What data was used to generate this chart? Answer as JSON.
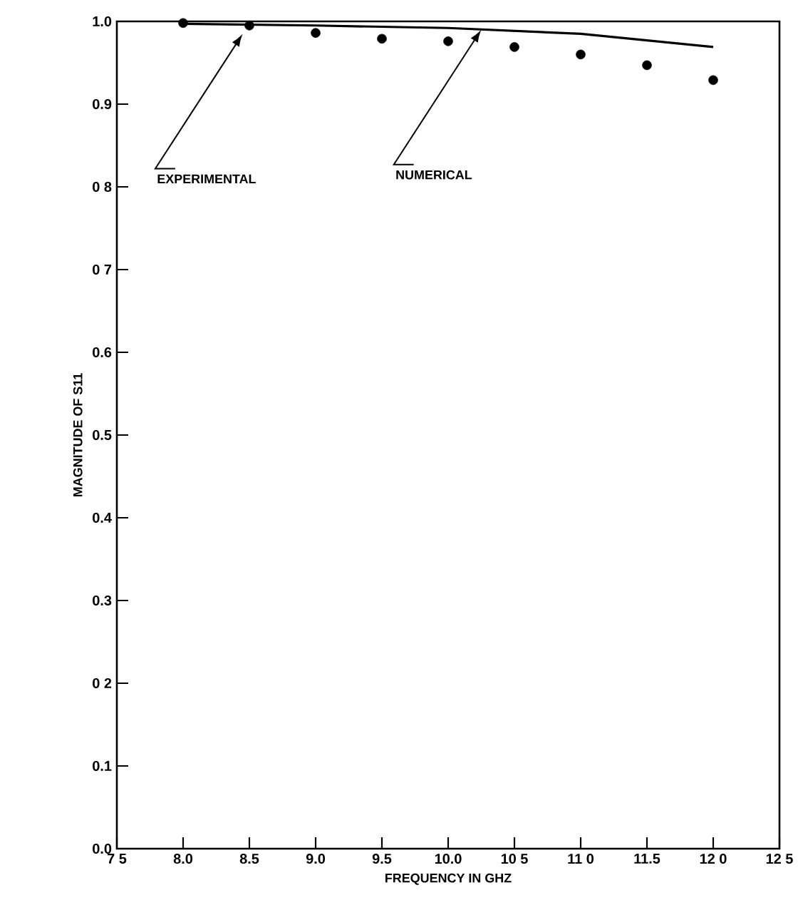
{
  "chart_data": {
    "type": "scatter",
    "xlabel": "FREQUENCY IN GHZ",
    "ylabel": "MAGNITUDE OF S11",
    "series": [
      {
        "marker": "circle",
        "color": "#000000",
        "x": [
          8.0,
          8.5,
          9.0,
          9.5,
          10.0,
          10.5,
          11.0,
          11.5,
          12.0
        ],
        "values": [
          0.998,
          0.995,
          0.986,
          0.979,
          0.976,
          0.969,
          0.96,
          0.947,
          0.929
        ]
      },
      {
        "type": "line",
        "marker": "none",
        "color": "#000000",
        "x": [
          8.0,
          9.0,
          10.0,
          11.0,
          12.0
        ],
        "values": [
          0.997,
          0.995,
          0.992,
          0.985,
          0.969
        ]
      }
    ],
    "annotations": [
      {
        "text": "EXPERIMENTAL",
        "x": 8.45,
        "y": 0.985
      },
      {
        "text": "NUMERICAL",
        "x": 10.25,
        "y": 0.99
      }
    ],
    "xlim": [
      7.5,
      12.5
    ],
    "xticks": [
      {
        "value": 7.5,
        "label": "7 5"
      },
      {
        "value": 8,
        "label": "8.0"
      },
      8.5,
      {
        "value": 9,
        "label": "9.0"
      },
      9.5,
      {
        "value": 10,
        "label": "10.0"
      },
      {
        "value": 10.5,
        "label": "10 5"
      },
      {
        "value": 11.0,
        "label": "11 0"
      },
      11.5,
      {
        "value": 12.0,
        "label": "12 0"
      },
      {
        "value": 12.5,
        "label": "12 5"
      }
    ],
    "ylim": [
      0,
      1.0
    ],
    "yticks": [
      {
        "value": 0,
        "label": "0.0"
      },
      0.1,
      {
        "value": 0.2,
        "label": "0 2"
      },
      0.3,
      0.4,
      0.5,
      0.6,
      {
        "value": 0.7,
        "label": "0 7"
      },
      {
        "value": 0.8,
        "label": "0 8"
      },
      0.9,
      {
        "value": 1.0,
        "label": "1.0"
      }
    ],
    "grid": false,
    "legend": false
  }
}
